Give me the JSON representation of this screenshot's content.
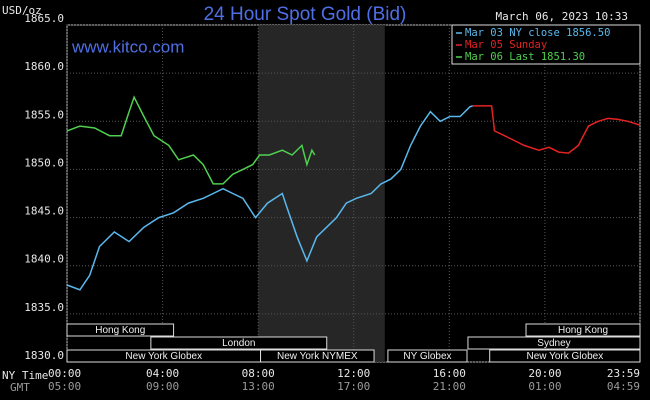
{
  "chart_data": {
    "type": "line",
    "title": "24 Hour Spot Gold (Bid)",
    "timestamp": "March 06, 2023 10:33",
    "website": "www.kitco.com",
    "y_unit": "USD/oz",
    "xlabel": "NY Time",
    "x2label": "GMT",
    "xlim": [
      0,
      23.98
    ],
    "ylim": [
      1830,
      1865
    ],
    "yticks": [
      {
        "value": 1830,
        "label": "1830.0"
      },
      {
        "value": 1835,
        "label": "1835.0"
      },
      {
        "value": 1840,
        "label": "1840.0"
      },
      {
        "value": 1845,
        "label": "1845.0"
      },
      {
        "value": 1850,
        "label": "1850.0"
      },
      {
        "value": 1855,
        "label": "1855.0"
      },
      {
        "value": 1860,
        "label": "1860.0"
      },
      {
        "value": 1865,
        "label": "1865.0"
      }
    ],
    "xticks": [
      {
        "value": 0,
        "label": "00:00"
      },
      {
        "value": 4,
        "label": "04:00"
      },
      {
        "value": 8,
        "label": "08:00"
      },
      {
        "value": 12,
        "label": "12:00"
      },
      {
        "value": 16,
        "label": "16:00"
      },
      {
        "value": 20,
        "label": "20:00"
      },
      {
        "value": 23.98,
        "label": "23:59"
      }
    ],
    "gmt_ticks": [
      {
        "value": 0,
        "label": "05:00"
      },
      {
        "value": 4,
        "label": "09:00"
      },
      {
        "value": 8,
        "label": "13:00"
      },
      {
        "value": 12,
        "label": "17:00"
      },
      {
        "value": 16,
        "label": "21:00"
      },
      {
        "value": 20,
        "label": "01:00"
      },
      {
        "value": 23.98,
        "label": "04:59"
      }
    ],
    "grid": true,
    "highlight": [
      8.0,
      13.3
    ],
    "sessions": [
      {
        "label": "Hong Kong",
        "start": 0,
        "end": 4.46
      },
      {
        "label": "London",
        "start": 3.51,
        "end": 10.87
      },
      {
        "label": "New York Globex",
        "start": 0,
        "end": 8.1
      },
      {
        "label": "New York NYMEX",
        "start": 8.1,
        "end": 12.85
      },
      {
        "label": "NY Globex",
        "start": 13.43,
        "end": 16.74
      },
      {
        "label": "Hong Kong",
        "start": 19.21,
        "end": 23.98
      },
      {
        "label": "Sydney",
        "start": 16.78,
        "end": 23.98
      },
      {
        "label": "New York Globex",
        "start": 17.69,
        "end": 23.98
      }
    ],
    "series": [
      {
        "name": "Mar 03 NY close 1856.50",
        "color": "#5ab8ec",
        "x": [
          0,
          0.54,
          0.95,
          1.36,
          1.98,
          2.6,
          3.22,
          3.84,
          4.46,
          5.08,
          5.7,
          6.12,
          6.53,
          6.94,
          7.36,
          7.89,
          8.39,
          9.01,
          9.21,
          9.63,
          10.04,
          10.45,
          10.87,
          11.28,
          11.69,
          12.11,
          12.73,
          13.14,
          13.55,
          13.97,
          14.38,
          14.79,
          15.21,
          15.62,
          16.03,
          16.45,
          16.86,
          16.98
        ],
        "values": [
          1838,
          1837.5,
          1839,
          1842,
          1843.5,
          1842.5,
          1844,
          1845,
          1845.5,
          1846.5,
          1847,
          1847.5,
          1848,
          1847.5,
          1847,
          1845,
          1846.5,
          1847.5,
          1846,
          1843,
          1840.5,
          1843,
          1844,
          1845,
          1846.5,
          1847,
          1847.5,
          1848.5,
          1849,
          1850,
          1852.5,
          1854.5,
          1856,
          1855,
          1855.5,
          1855.5,
          1856.5,
          1856.6
        ]
      },
      {
        "name": "Mar 05 Sunday",
        "color": "#e52222",
        "x": [
          16.98,
          17.77,
          17.89,
          18.31,
          18.72,
          19.13,
          19.75,
          20.17,
          20.58,
          20.99,
          21.4,
          21.82,
          22.23,
          22.64,
          23.06,
          23.47,
          23.98
        ],
        "values": [
          1856.6,
          1856.6,
          1854,
          1853.5,
          1853,
          1852.5,
          1852,
          1852.3,
          1851.8,
          1851.7,
          1852.5,
          1854.5,
          1855,
          1855.3,
          1855.2,
          1855,
          1854.6
        ]
      },
      {
        "name": "Mar 06 Last 1851.30",
        "color": "#4fd04f",
        "x": [
          0,
          0.54,
          1.16,
          1.78,
          2.27,
          2.6,
          2.81,
          3.22,
          3.64,
          4.26,
          4.67,
          5.29,
          5.7,
          6.12,
          6.53,
          6.94,
          7.36,
          7.77,
          8.06,
          8.47,
          9.01,
          9.42,
          9.83,
          10.04,
          10.25,
          10.37
        ],
        "values": [
          1854,
          1854.5,
          1854.3,
          1853.5,
          1853.5,
          1856,
          1857.5,
          1855.5,
          1853.5,
          1852.5,
          1851,
          1851.5,
          1850.5,
          1848.5,
          1848.5,
          1849.5,
          1850,
          1850.5,
          1851.5,
          1851.5,
          1852,
          1851.5,
          1852.5,
          1850.5,
          1852,
          1851.5
        ]
      }
    ]
  }
}
